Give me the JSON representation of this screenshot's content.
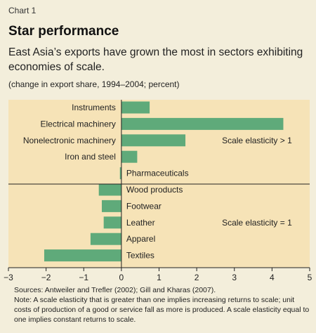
{
  "header": {
    "chart_number": "Chart 1",
    "title": "Star performance",
    "subtitle": "East Asia’s exports have grown the most in sectors exhibiting economies of scale.",
    "units": "(change in export share, 1994–2004; percent)"
  },
  "footer": {
    "sources": "Sources: Antweiler and Trefler (2002); Gill and Kharas (2007).",
    "note": "Note: A scale elasticity that is greater than one implies increasing returns to scale; unit costs of production of a good or service fall as more is produced. A scale elasticity equal to one implies constant returns to scale."
  },
  "colors": {
    "page_background": "#f3eedb",
    "plot_background": "#f6e3b7",
    "bar": "#5faa7a",
    "axis": "#222222"
  },
  "chart_data": {
    "type": "bar",
    "orientation": "horizontal",
    "title": "Star performance",
    "xlim": [
      -3,
      5
    ],
    "xticks": [
      -3,
      -2,
      -1,
      0,
      1,
      2,
      3,
      4,
      5
    ],
    "grid": false,
    "groups": [
      {
        "label": "Scale elasticity > 1",
        "categories": [
          "Instruments",
          "Electrical machinery",
          "Nonelectronic machinery",
          "Iron and steel",
          "Pharmaceuticals"
        ],
        "values": [
          0.75,
          4.3,
          1.7,
          0.42,
          -0.04
        ]
      },
      {
        "label": "Scale elasticity = 1",
        "categories": [
          "Wood products",
          "Footwear",
          "Leather",
          "Apparel",
          "Textiles"
        ],
        "values": [
          -0.6,
          -0.52,
          -0.47,
          -0.82,
          -2.05
        ]
      }
    ]
  }
}
